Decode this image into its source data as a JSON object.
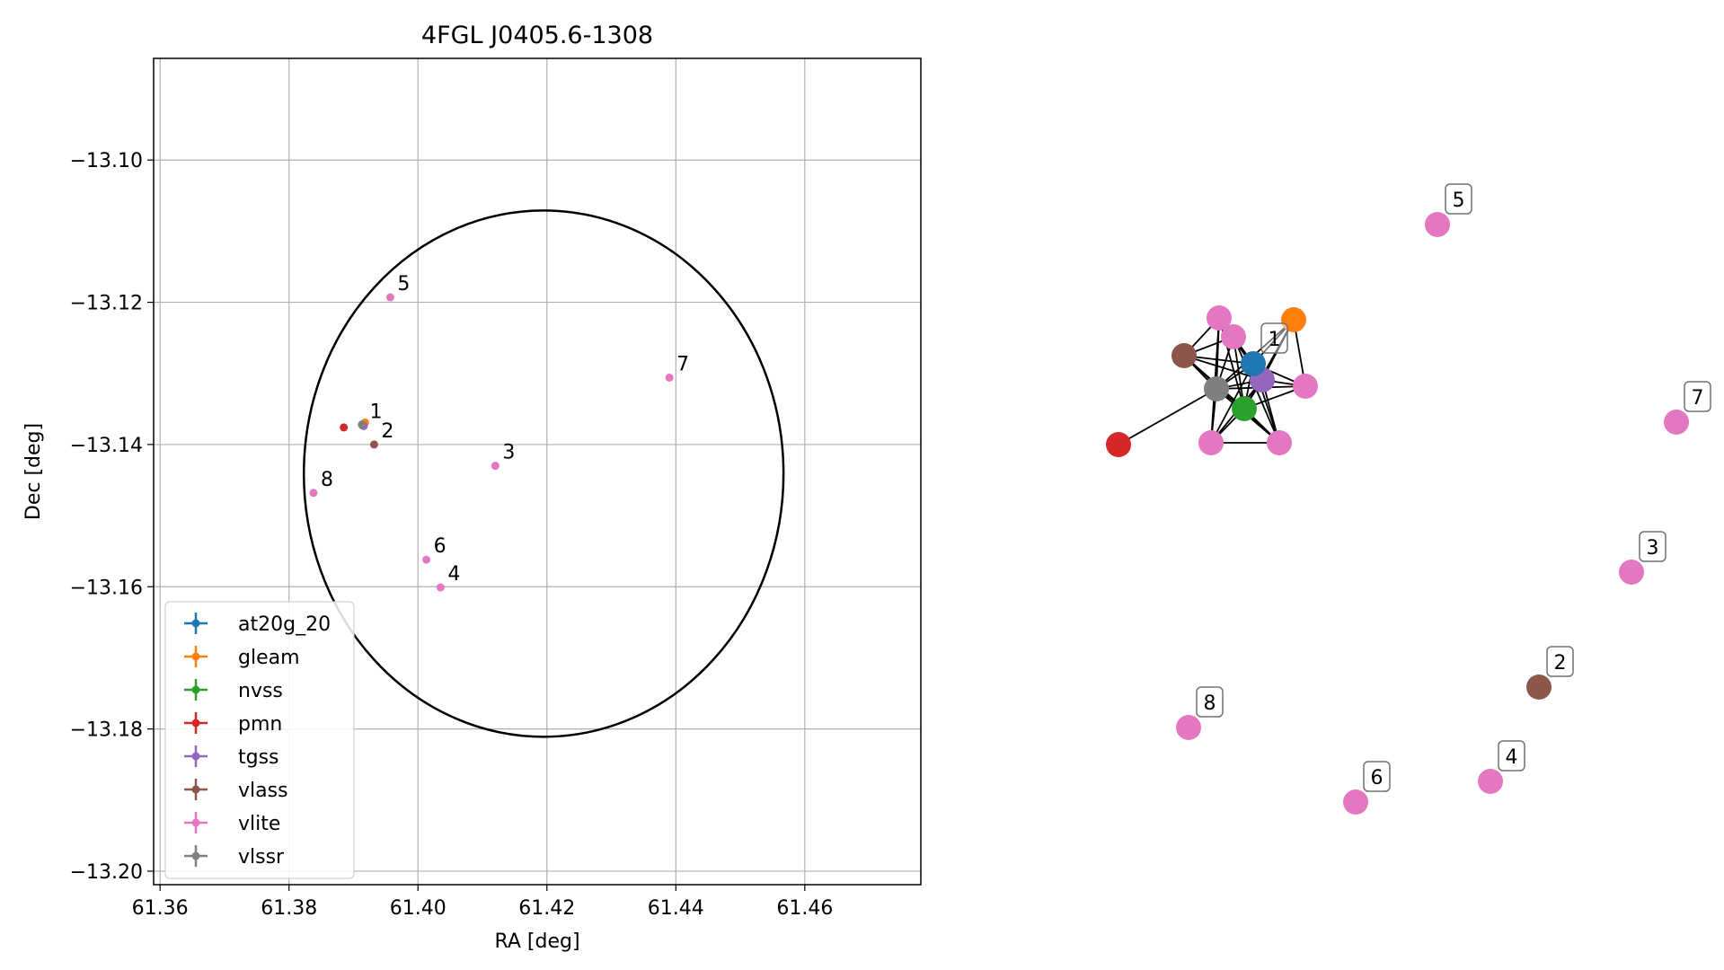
{
  "colors": {
    "at20g_20": "#1f77b4",
    "gleam": "#ff7f0e",
    "nvss": "#2ca02c",
    "pmn": "#d62728",
    "tgss": "#9467bd",
    "vlass": "#8c564b",
    "vlite": "#e377c2",
    "vlssr": "#7f7f7f"
  },
  "chart_data": [
    {
      "type": "scatter",
      "title": "4FGL J0405.6-1308",
      "xlabel": "RA [deg]",
      "ylabel": "Dec [deg]",
      "xlim": [
        61.359,
        61.478
      ],
      "ylim": [
        -13.2019,
        -13.0857
      ],
      "grid": true,
      "legend": "lower-left",
      "xticks": [
        61.36,
        61.38,
        61.4,
        61.42,
        61.44,
        61.46
      ],
      "xtick_labels": [
        "61.36",
        "61.38",
        "61.40",
        "61.42",
        "61.44",
        "61.46"
      ],
      "yticks": [
        -13.1,
        -13.12,
        -13.14,
        -13.16,
        -13.18,
        -13.2
      ],
      "ytick_labels": [
        "−13.10",
        "−13.12",
        "−13.14",
        "−13.16",
        "−13.18",
        "−13.20"
      ],
      "ellipse": {
        "center": [
          61.4195,
          -13.1441
        ],
        "semi_axes": [
          0.0372,
          0.037
        ]
      },
      "series": [
        {
          "name": "at20g_20",
          "points": [
            [
              61.3915,
              -13.1371
            ]
          ]
        },
        {
          "name": "gleam",
          "points": [
            [
              61.3918,
              -13.1369
            ]
          ]
        },
        {
          "name": "nvss",
          "points": [
            [
              61.3914,
              -13.1373
            ]
          ]
        },
        {
          "name": "pmn",
          "points": [
            [
              61.3885,
              -13.1376
            ]
          ]
        },
        {
          "name": "tgss",
          "points": [
            [
              61.3916,
              -13.1374
            ]
          ]
        },
        {
          "name": "vlass",
          "points": [
            [
              61.3932,
              -13.14
            ]
          ]
        },
        {
          "name": "vlite",
          "points": [
            [
              61.3914,
              -13.1373
            ],
            [
              61.3957,
              -13.1193
            ],
            [
              61.412,
              -13.143
            ],
            [
              61.4035,
              -13.1601
            ],
            [
              61.439,
              -13.1306
            ],
            [
              61.4013,
              -13.1562
            ],
            [
              61.3838,
              -13.1468
            ]
          ]
        },
        {
          "name": "vlssr",
          "points": [
            [
              61.3913,
              -13.1372
            ]
          ]
        }
      ],
      "annotations": [
        {
          "text": "1",
          "x": 61.3914,
          "y": -13.1373
        },
        {
          "text": "2",
          "x": 61.3932,
          "y": -13.14
        },
        {
          "text": "3",
          "x": 61.412,
          "y": -13.143
        },
        {
          "text": "4",
          "x": 61.4035,
          "y": -13.1601
        },
        {
          "text": "5",
          "x": 61.3957,
          "y": -13.1193
        },
        {
          "text": "6",
          "x": 61.4013,
          "y": -13.1562
        },
        {
          "text": "7",
          "x": 61.439,
          "y": -13.1306
        },
        {
          "text": "8",
          "x": 61.3838,
          "y": -13.1468
        }
      ]
    },
    {
      "type": "network",
      "nodes": [
        {
          "series": "at20g_20",
          "label": "1"
        },
        {
          "series": "gleam",
          "label": ""
        },
        {
          "series": "nvss",
          "label": ""
        },
        {
          "series": "pmn",
          "label": ""
        },
        {
          "series": "tgss",
          "label": ""
        },
        {
          "series": "vlass",
          "label": ""
        },
        {
          "series": "vlite",
          "label": ""
        },
        {
          "series": "vlite",
          "label": ""
        },
        {
          "series": "vlite",
          "label": ""
        },
        {
          "series": "vlite",
          "label": ""
        },
        {
          "series": "vlite",
          "label": ""
        },
        {
          "series": "vlssr",
          "label": ""
        },
        {
          "series": "vlite",
          "label": "5"
        },
        {
          "series": "vlite",
          "label": "7"
        },
        {
          "series": "vlite",
          "label": "3"
        },
        {
          "series": "vlass",
          "label": "2"
        },
        {
          "series": "vlite",
          "label": "8"
        },
        {
          "series": "vlite",
          "label": "4"
        },
        {
          "series": "vlite",
          "label": "6"
        }
      ],
      "edges": [
        [
          0,
          1
        ],
        [
          0,
          2
        ],
        [
          0,
          4
        ],
        [
          0,
          5
        ],
        [
          0,
          6
        ],
        [
          0,
          7
        ],
        [
          0,
          8
        ],
        [
          0,
          9
        ],
        [
          0,
          10
        ],
        [
          0,
          11
        ],
        [
          1,
          2
        ],
        [
          1,
          4
        ],
        [
          1,
          11
        ],
        [
          1,
          7
        ],
        [
          2,
          4
        ],
        [
          2,
          5
        ],
        [
          2,
          6
        ],
        [
          2,
          7
        ],
        [
          2,
          8
        ],
        [
          2,
          9
        ],
        [
          2,
          10
        ],
        [
          2,
          11
        ],
        [
          4,
          5
        ],
        [
          4,
          6
        ],
        [
          4,
          7
        ],
        [
          4,
          8
        ],
        [
          4,
          9
        ],
        [
          4,
          10
        ],
        [
          4,
          11
        ],
        [
          5,
          6
        ],
        [
          5,
          9
        ],
        [
          5,
          10
        ],
        [
          5,
          11
        ],
        [
          6,
          8
        ],
        [
          6,
          11
        ],
        [
          7,
          11
        ],
        [
          8,
          11
        ],
        [
          8,
          9
        ],
        [
          9,
          11
        ],
        [
          9,
          10
        ],
        [
          10,
          11
        ],
        [
          3,
          11
        ]
      ]
    }
  ]
}
